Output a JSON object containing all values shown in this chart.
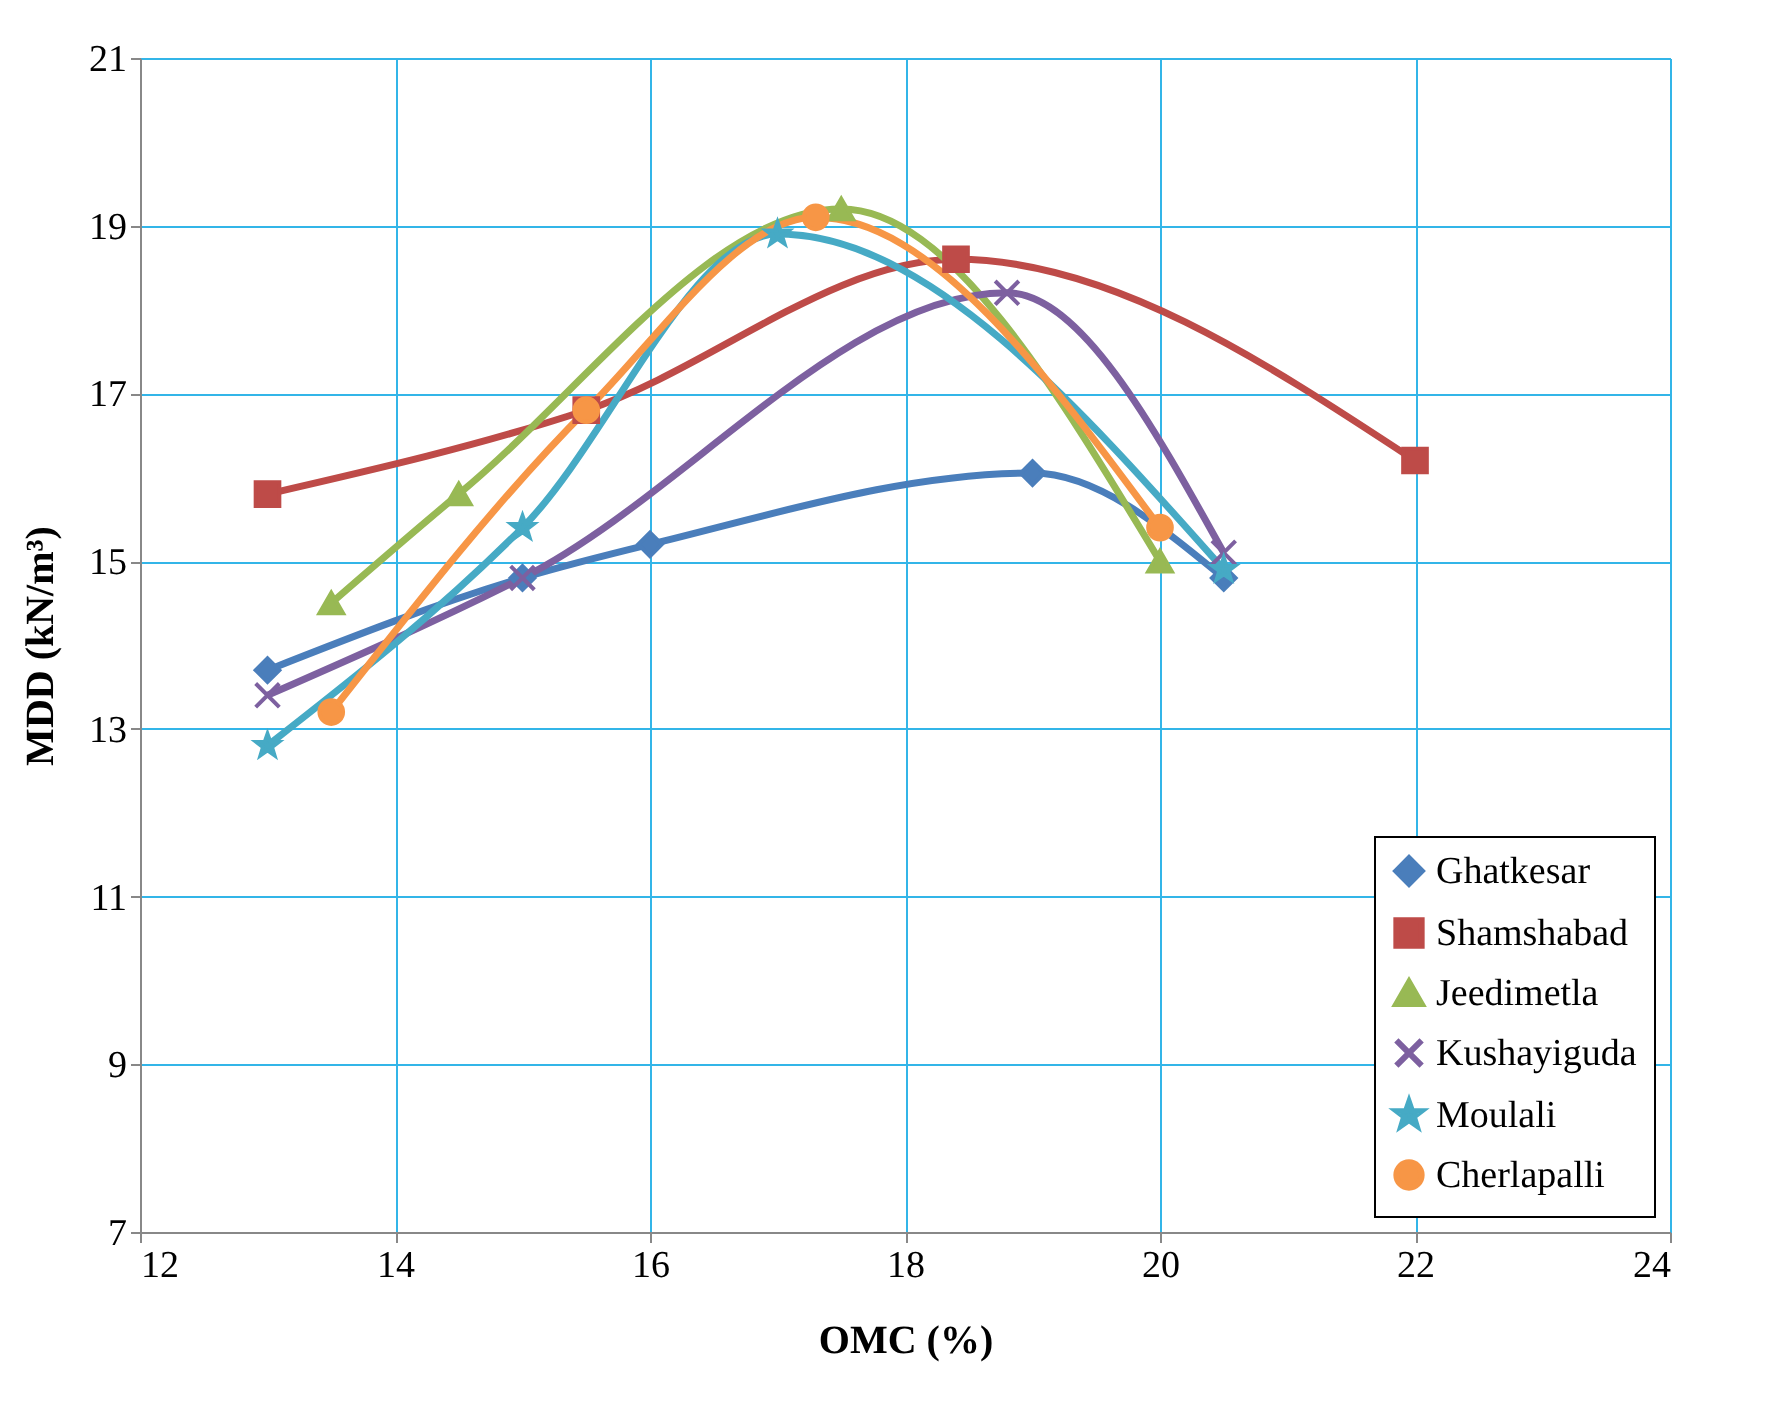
{
  "chart_data": {
    "type": "line",
    "xlabel": "OMC (%)",
    "ylabel": "MDD (kN/m³)",
    "xlim": [
      12,
      24
    ],
    "xticks": [
      12,
      14,
      16,
      18,
      20,
      22,
      24
    ],
    "ylim": [
      7,
      21
    ],
    "yticks": [
      7,
      9,
      11,
      13,
      15,
      17,
      19,
      21
    ],
    "grid": true,
    "legend": "bottom right",
    "line_style": "solid",
    "series": [
      {
        "name": "Ghatkesar",
        "color": "#4a7ebb",
        "marker": "diamond",
        "x": [
          13,
          15,
          16,
          19,
          20.5
        ],
        "values": [
          13.7,
          14.8,
          15.2,
          16.05,
          14.8
        ]
      },
      {
        "name": "Shamshabad",
        "color": "#be4b48",
        "marker": "square",
        "x": [
          13,
          15.5,
          18.4,
          22
        ],
        "values": [
          15.8,
          16.8,
          18.6,
          16.2
        ]
      },
      {
        "name": "Jeedimetla",
        "color": "#98b954",
        "marker": "triangle",
        "x": [
          13.5,
          14.5,
          17.5,
          20
        ],
        "values": [
          14.5,
          15.8,
          19.2,
          15.0
        ]
      },
      {
        "name": "Kushayiguda",
        "color": "#7d60a0",
        "marker": "cross",
        "x": [
          13,
          15,
          18.8,
          20.5
        ],
        "values": [
          13.4,
          14.8,
          18.2,
          15.1
        ]
      },
      {
        "name": "Moulali",
        "color": "#46aac5",
        "marker": "star",
        "x": [
          13,
          15,
          17,
          20.5
        ],
        "values": [
          12.8,
          15.4,
          18.9,
          14.9
        ]
      },
      {
        "name": "Cherlapalli",
        "color": "#f79646",
        "marker": "circle",
        "x": [
          13.5,
          15.5,
          17.3,
          20
        ],
        "values": [
          13.2,
          16.8,
          19.1,
          15.4
        ]
      }
    ]
  }
}
